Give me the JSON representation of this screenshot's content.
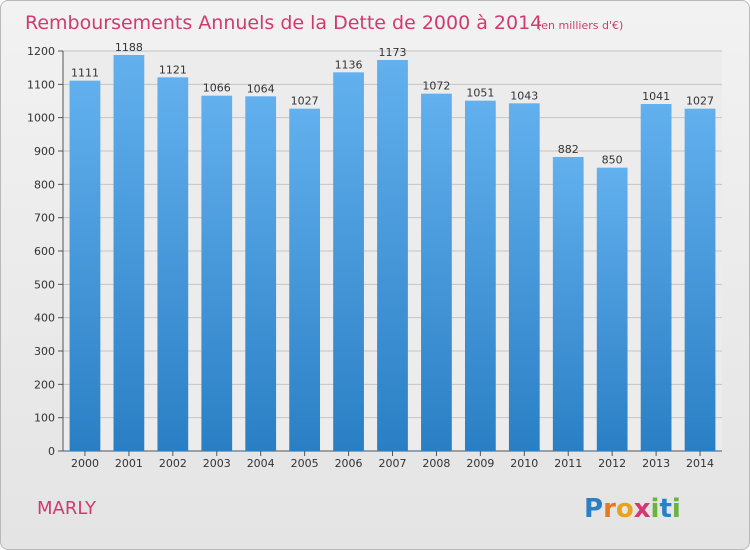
{
  "chart_data": {
    "type": "bar",
    "title": "Remboursements Annuels de la Dette de 2000 à 2014",
    "subtitle": "(en milliers d'€)",
    "categories": [
      "2000",
      "2001",
      "2002",
      "2003",
      "2004",
      "2005",
      "2006",
      "2007",
      "2008",
      "2009",
      "2010",
      "2011",
      "2012",
      "2013",
      "2014"
    ],
    "values": [
      1111,
      1188,
      1121,
      1066,
      1064,
      1027,
      1136,
      1173,
      1072,
      1051,
      1043,
      882,
      850,
      1041,
      1027
    ],
    "ylim": [
      0,
      1200
    ],
    "yticks": [
      0,
      100,
      200,
      300,
      400,
      500,
      600,
      700,
      800,
      900,
      1000,
      1100,
      1200
    ],
    "grid": true,
    "bar_color_top": "#62b0ee",
    "bar_color_bottom": "#2a7fc4"
  },
  "footer": {
    "commune": "MARLY",
    "logo_letters": [
      "P",
      "r",
      "o",
      "x",
      "i",
      "t",
      "i"
    ],
    "logo_colors": [
      "#2d7fc4",
      "#e87a1e",
      "#e8a21e",
      "#d03a6f",
      "#6ab43e",
      "#2d7fc4",
      "#6ab43e"
    ]
  }
}
